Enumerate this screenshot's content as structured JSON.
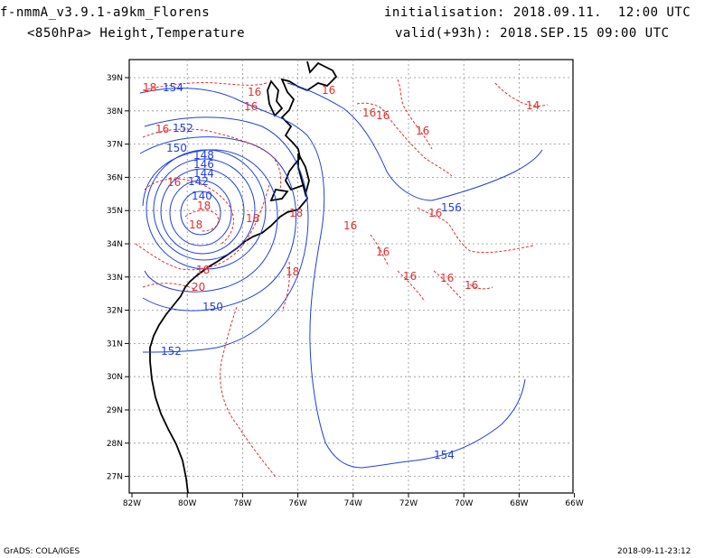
{
  "header": {
    "model": "f-nmmA_v3.9.1-a9km_Florens",
    "level_field": "<850hPa> Height,Temperature",
    "initialisation": "initialisation: 2018.09.11.  12:00 UTC",
    "valid": "valid(+93h): 2018.SEP.15 09:00 UTC"
  },
  "footer": {
    "left": "GrADS: COLA/IGES",
    "right": "2018-09-11-23:12"
  },
  "axes": {
    "lon_labels": [
      "82W",
      "80W",
      "78W",
      "76W",
      "74W",
      "72W",
      "70W",
      "68W",
      "66W"
    ],
    "lat_labels": [
      "39N",
      "38N",
      "37N",
      "36N",
      "35N",
      "34N",
      "33N",
      "32N",
      "31N",
      "30N",
      "29N",
      "28N",
      "27N"
    ]
  },
  "colors": {
    "height_contour": "#2040e0",
    "temperature_contour": "#e03030",
    "coastline": "#000000",
    "grid": "#909090"
  },
  "height_labels": [
    "154",
    "152",
    "150",
    "148",
    "146",
    "144",
    "142",
    "140",
    "150",
    "152",
    "156",
    "154"
  ],
  "temperature_labels": [
    "18",
    "16",
    "16",
    "16",
    "16",
    "16",
    "16",
    "14",
    "16",
    "18",
    "18",
    "18",
    "18",
    "16",
    "16",
    "16",
    "16",
    "16",
    "16",
    "16",
    "18",
    "20",
    "18"
  ]
}
